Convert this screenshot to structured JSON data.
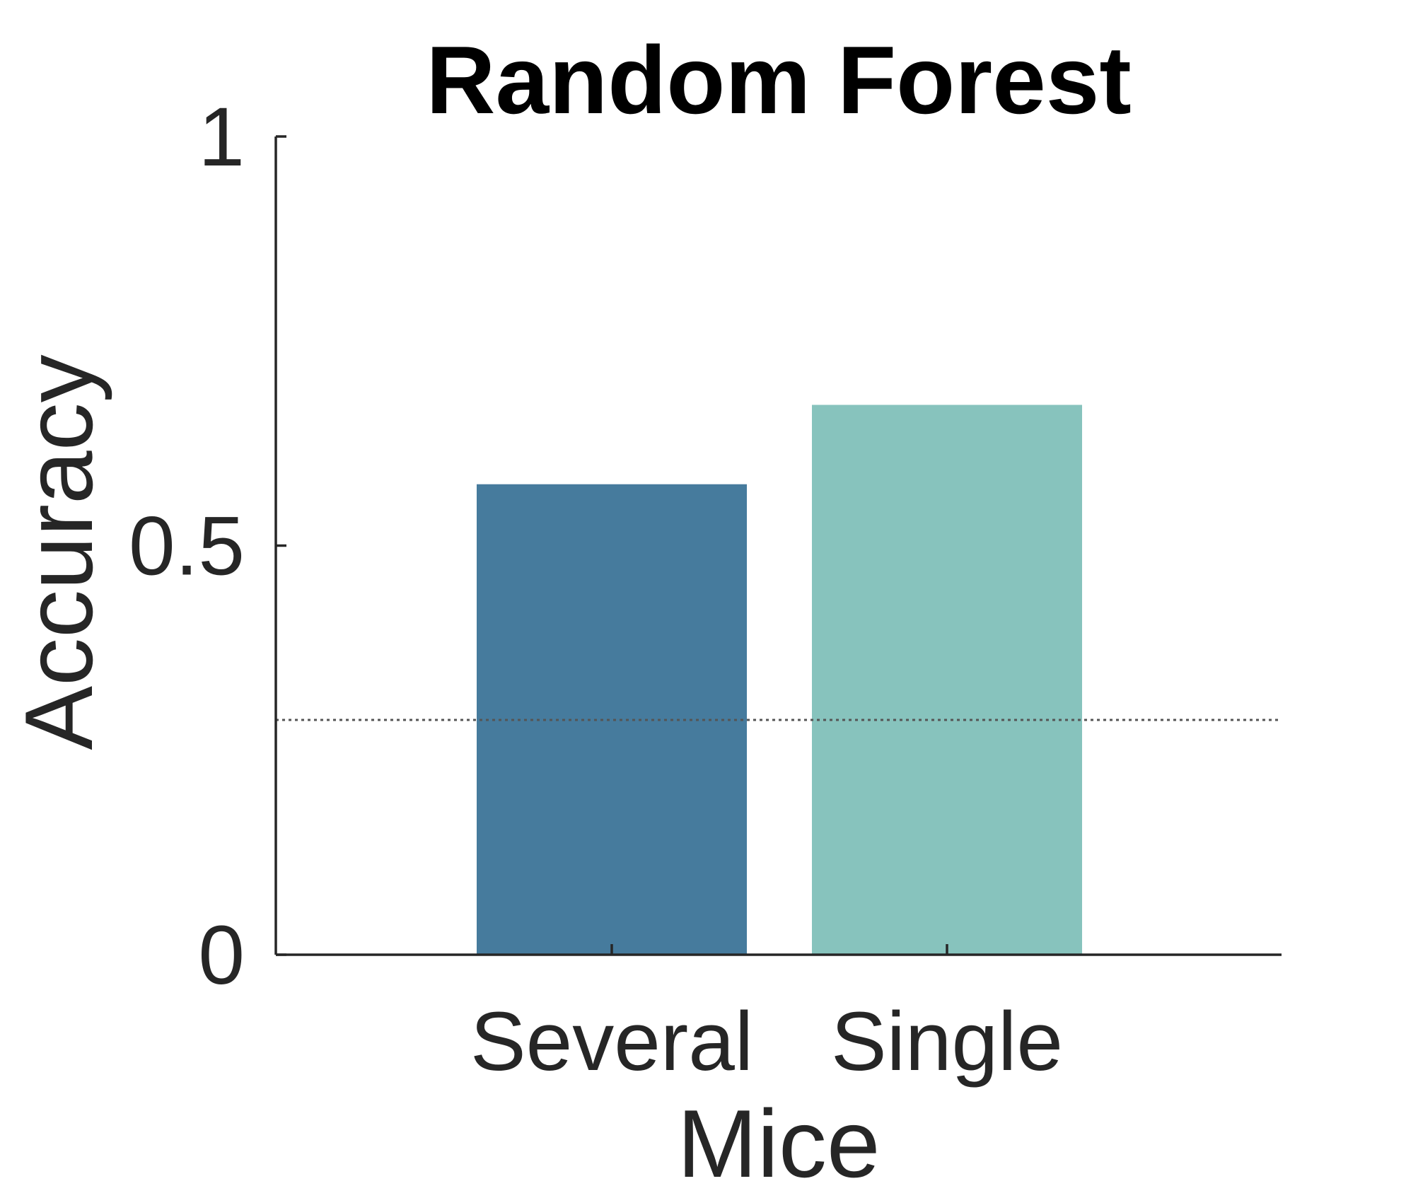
{
  "chart_data": {
    "type": "bar",
    "title": "Random Forest",
    "xlabel": "Mice",
    "ylabel": "Accuracy",
    "categories": [
      "Several",
      "Single"
    ],
    "values": [
      0.575,
      0.672
    ],
    "bar_colors": [
      "#467B9D",
      "#87C3BD"
    ],
    "ylim": [
      0,
      1
    ],
    "yticks": [
      0,
      0.5,
      1
    ],
    "ytick_labels": [
      "0",
      "0.5",
      "1"
    ],
    "reference_line": {
      "y": 0.287,
      "style": "dotted",
      "color": "#555555"
    },
    "grid": false,
    "legend": "none"
  }
}
